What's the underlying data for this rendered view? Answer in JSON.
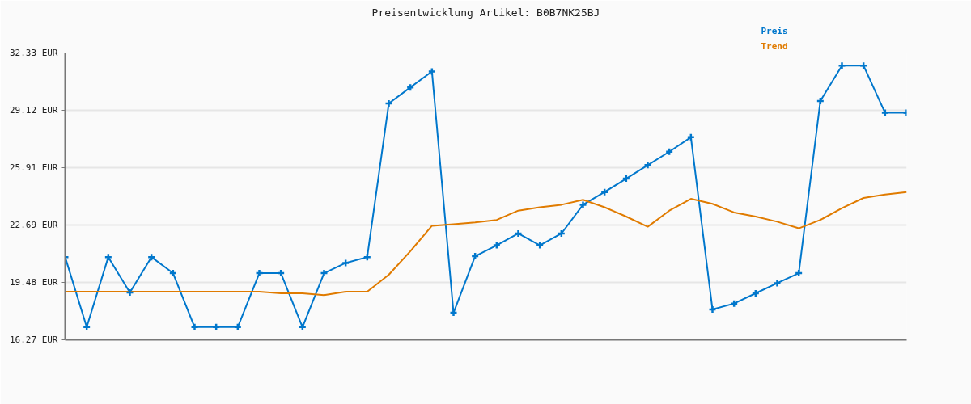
{
  "chart_data": {
    "type": "line",
    "title": "Preisentwicklung Artikel: B0B7NK25BJ",
    "categories": [
      null,
      null,
      null,
      null,
      null,
      null,
      null,
      null,
      null,
      null,
      null,
      null,
      null,
      null,
      null,
      null,
      null,
      null,
      null,
      null,
      null,
      null,
      null,
      null,
      null,
      null,
      null,
      null,
      null,
      null,
      null,
      null,
      null,
      null,
      null,
      null,
      null,
      null,
      null,
      null
    ],
    "series": [
      {
        "name": "Preis",
        "color": "#0077cc",
        "marker": "cross",
        "values": [
          20.9,
          16.98,
          20.9,
          18.92,
          20.9,
          20.0,
          16.98,
          16.98,
          16.98,
          20.0,
          20.0,
          16.98,
          20.0,
          20.57,
          20.9,
          29.5,
          30.4,
          31.29,
          17.78,
          20.95,
          21.56,
          22.22,
          21.56,
          22.22,
          23.83,
          24.54,
          25.29,
          26.05,
          26.8,
          27.61,
          17.97,
          18.3,
          18.87,
          19.44,
          20.0,
          29.64,
          31.62,
          31.62,
          28.98,
          28.98
        ]
      },
      {
        "name": "Trend",
        "color": "#e07b00",
        "marker": "none",
        "values": [
          18.96,
          18.96,
          18.96,
          18.96,
          18.96,
          18.96,
          18.96,
          18.96,
          18.96,
          18.96,
          18.87,
          18.87,
          18.77,
          18.96,
          18.96,
          19.91,
          21.23,
          22.65,
          22.74,
          22.84,
          22.98,
          23.5,
          23.69,
          23.83,
          24.11,
          23.69,
          23.17,
          22.6,
          23.5,
          24.16,
          23.88,
          23.4,
          23.17,
          22.88,
          22.51,
          22.98,
          23.64,
          24.21,
          24.4,
          24.54
        ]
      }
    ],
    "ylim": [
      16.27,
      32.33
    ],
    "yticks": [
      {
        "value": 16.27,
        "label": "16.27 EUR"
      },
      {
        "value": 19.48,
        "label": "19.48 EUR"
      },
      {
        "value": 22.69,
        "label": "22.69 EUR"
      },
      {
        "value": 25.91,
        "label": "25.91 EUR"
      },
      {
        "value": 29.12,
        "label": "29.12 EUR"
      },
      {
        "value": 32.33,
        "label": "32.33 EUR"
      }
    ],
    "grid": "y",
    "line_style": "solid"
  }
}
